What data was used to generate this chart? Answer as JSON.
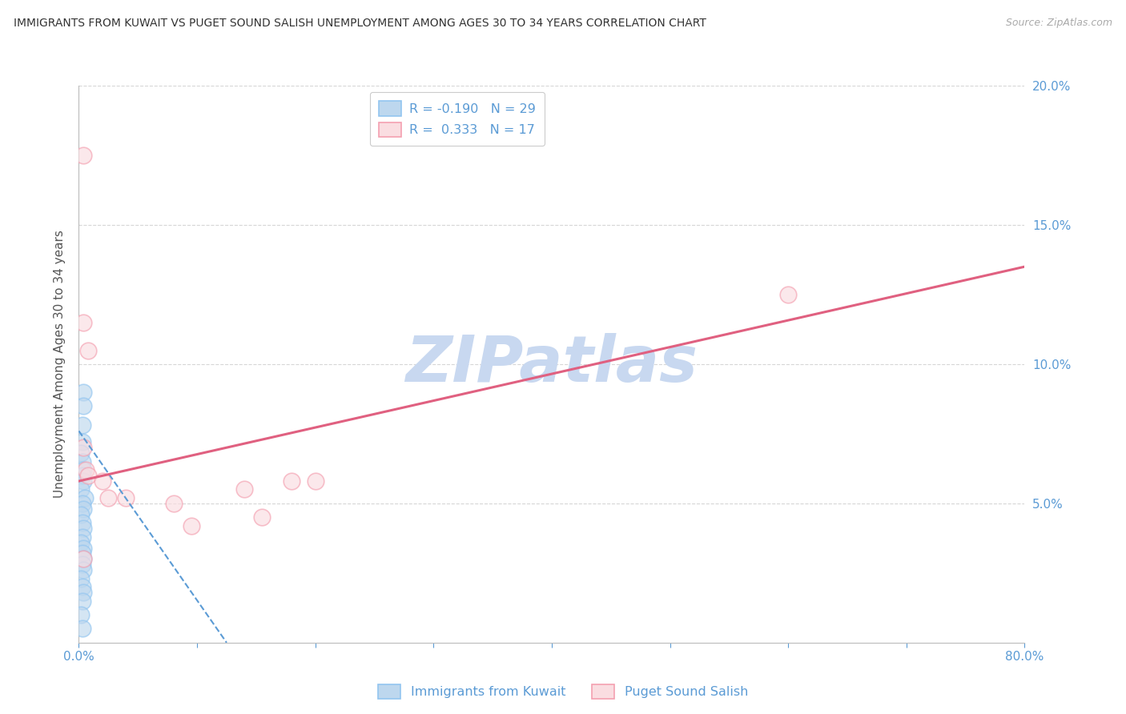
{
  "title": "IMMIGRANTS FROM KUWAIT VS PUGET SOUND SALISH UNEMPLOYMENT AMONG AGES 30 TO 34 YEARS CORRELATION CHART",
  "source": "Source: ZipAtlas.com",
  "ylabel": "Unemployment Among Ages 30 to 34 years",
  "xlim": [
    0,
    0.8
  ],
  "ylim": [
    0,
    0.2
  ],
  "yticks": [
    0.0,
    0.05,
    0.1,
    0.15,
    0.2
  ],
  "ytick_labels": [
    "",
    "5.0%",
    "10.0%",
    "15.0%",
    "20.0%"
  ],
  "xticks": [
    0.0,
    0.1,
    0.2,
    0.3,
    0.4,
    0.5,
    0.6,
    0.7,
    0.8
  ],
  "xtick_labels": [
    "0.0%",
    "",
    "",
    "",
    "",
    "",
    "",
    "",
    "80.0%"
  ],
  "blue_scatter": [
    [
      0.004,
      0.09
    ],
    [
      0.004,
      0.085
    ],
    [
      0.003,
      0.078
    ],
    [
      0.003,
      0.072
    ],
    [
      0.002,
      0.068
    ],
    [
      0.003,
      0.065
    ],
    [
      0.004,
      0.062
    ],
    [
      0.003,
      0.06
    ],
    [
      0.004,
      0.058
    ],
    [
      0.002,
      0.055
    ],
    [
      0.005,
      0.052
    ],
    [
      0.003,
      0.05
    ],
    [
      0.004,
      0.048
    ],
    [
      0.002,
      0.046
    ],
    [
      0.003,
      0.043
    ],
    [
      0.004,
      0.041
    ],
    [
      0.003,
      0.038
    ],
    [
      0.002,
      0.036
    ],
    [
      0.004,
      0.034
    ],
    [
      0.003,
      0.032
    ],
    [
      0.004,
      0.03
    ],
    [
      0.003,
      0.028
    ],
    [
      0.004,
      0.026
    ],
    [
      0.002,
      0.023
    ],
    [
      0.003,
      0.02
    ],
    [
      0.004,
      0.018
    ],
    [
      0.003,
      0.015
    ],
    [
      0.002,
      0.01
    ],
    [
      0.003,
      0.005
    ]
  ],
  "pink_scatter": [
    [
      0.004,
      0.175
    ],
    [
      0.004,
      0.115
    ],
    [
      0.008,
      0.105
    ],
    [
      0.004,
      0.07
    ],
    [
      0.006,
      0.062
    ],
    [
      0.008,
      0.06
    ],
    [
      0.02,
      0.058
    ],
    [
      0.025,
      0.052
    ],
    [
      0.04,
      0.052
    ],
    [
      0.08,
      0.05
    ],
    [
      0.095,
      0.042
    ],
    [
      0.14,
      0.055
    ],
    [
      0.155,
      0.045
    ],
    [
      0.18,
      0.058
    ],
    [
      0.2,
      0.058
    ],
    [
      0.6,
      0.125
    ],
    [
      0.004,
      0.03
    ]
  ],
  "blue_line_x": [
    0.0,
    0.125
  ],
  "blue_line_y": [
    0.076,
    0.0
  ],
  "pink_line_x": [
    0.0,
    0.8
  ],
  "pink_line_y": [
    0.058,
    0.135
  ],
  "blue_color": "#92C5F0",
  "pink_color": "#F4A0B0",
  "blue_fill_color": "#BDD7EE",
  "pink_fill_color": "#FADDE1",
  "blue_line_color": "#5B9BD5",
  "pink_line_color": "#E06080",
  "legend_blue_r": "R = -0.190",
  "legend_blue_n": "N = 29",
  "legend_pink_r": "R =  0.333",
  "legend_pink_n": "N = 17",
  "legend_label_blue": "Immigrants from Kuwait",
  "legend_label_pink": "Puget Sound Salish",
  "watermark": "ZIPatlas",
  "watermark_color": "#C8D8F0",
  "title_color": "#333333",
  "axis_color": "#5B9BD5",
  "ylabel_color": "#555555",
  "background_color": "#FFFFFF",
  "grid_color": "#CCCCCC"
}
